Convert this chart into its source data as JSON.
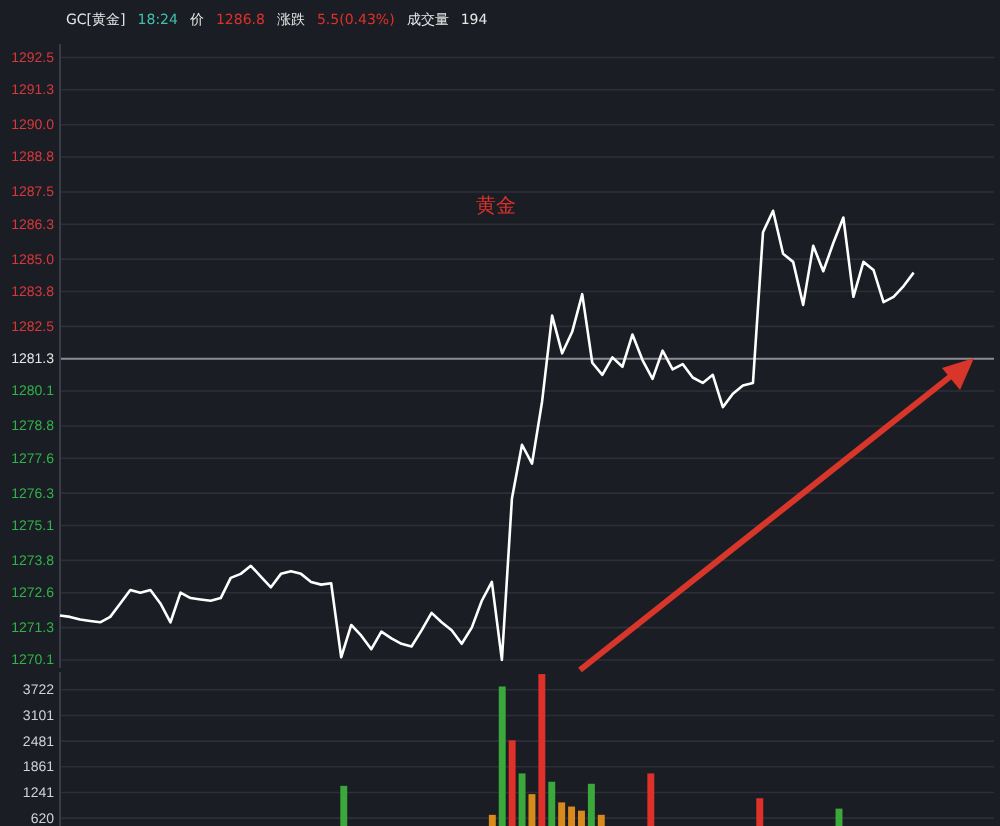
{
  "chart_data": [
    {
      "type": "line",
      "title": "黄金",
      "annotations": [
        "GC[黄金]",
        "18:24",
        "价",
        "1286.8",
        "涨跌",
        "5.5(0.43%)",
        "成交量",
        "194"
      ],
      "categories": [
        null,
        null,
        null,
        null,
        null,
        null,
        null,
        null,
        null,
        null,
        null,
        null,
        null,
        null,
        null,
        null,
        null,
        null,
        null,
        null,
        null,
        null,
        null,
        null,
        null,
        null,
        null,
        null,
        null,
        null,
        null,
        null,
        null,
        null,
        null,
        null,
        null,
        null,
        null,
        null,
        null,
        null,
        null,
        null,
        null,
        null,
        null,
        null,
        null,
        null,
        null,
        null,
        null,
        null,
        null,
        null,
        null,
        null,
        null,
        null,
        null,
        null,
        null,
        null,
        null,
        null,
        null,
        null,
        null,
        null,
        null,
        null,
        null,
        null,
        null,
        null,
        null,
        null,
        null,
        null,
        null,
        null,
        null,
        null,
        null,
        null,
        null,
        null,
        null,
        null,
        null,
        null,
        null,
        null
      ],
      "series": [
        {
          "color": "#ffffff",
          "values": [
            1271.75,
            1271.7,
            1271.6,
            1271.55,
            1271.5,
            1271.7,
            1272.2,
            1272.7,
            1272.6,
            1272.7,
            1272.2,
            1271.5,
            1272.6,
            1272.4,
            1272.35,
            1272.3,
            1272.4,
            1273.15,
            1273.3,
            1273.6,
            1273.2,
            1272.8,
            1273.3,
            1273.4,
            1273.3,
            1273.0,
            1272.9,
            1272.95,
            1270.2,
            1271.4,
            1271.0,
            1270.5,
            1271.15,
            1270.9,
            1270.7,
            1270.6,
            1271.2,
            1271.85,
            1271.5,
            1271.2,
            1270.7,
            1271.3,
            1272.3,
            1273.0,
            1270.1,
            1276.1,
            1278.1,
            1277.4,
            1279.7,
            1282.9,
            1281.5,
            1282.3,
            1283.7,
            1281.15,
            1280.7,
            1281.35,
            1281.0,
            1282.2,
            1281.25,
            1280.55,
            1281.6,
            1280.9,
            1281.1,
            1280.6,
            1280.4,
            1280.7,
            1279.5,
            1280.0,
            1280.3,
            1280.4,
            1286.0,
            1286.8,
            1285.2,
            1284.9,
            1283.3,
            1285.5,
            1284.55,
            1285.6,
            1286.55,
            1283.6,
            1284.9,
            1284.6,
            1283.4,
            1283.6,
            1284.0,
            1284.5,
            null,
            null,
            null,
            null,
            null,
            null,
            null,
            null
          ]
        }
      ],
      "ylim": [
        1269.8,
        1293.0
      ],
      "yticks": [
        {
          "value": 1270.1,
          "label": "1270.1"
        },
        {
          "value": 1271.3,
          "label": "1271.3"
        },
        {
          "value": 1272.6,
          "label": "1272.6"
        },
        {
          "value": 1273.8,
          "label": "1273.8"
        },
        {
          "value": 1275.1,
          "label": "1275.1"
        },
        {
          "value": 1276.3,
          "label": "1276.3"
        },
        {
          "value": 1277.6,
          "label": "1277.6"
        },
        {
          "value": 1278.8,
          "label": "1278.8"
        },
        {
          "value": 1280.1,
          "label": "1280.1"
        },
        {
          "value": 1281.3,
          "label": "1281.3"
        },
        {
          "value": 1282.5,
          "label": "1282.5"
        },
        {
          "value": 1283.8,
          "label": "1283.8"
        },
        {
          "value": 1285,
          "label": "1285.0"
        },
        {
          "value": 1286.3,
          "label": "1286.3"
        },
        {
          "value": 1287.5,
          "label": "1287.5"
        },
        {
          "value": 1288.8,
          "label": "1288.8"
        },
        {
          "value": 1290,
          "label": "1290.0"
        },
        {
          "value": 1291.3,
          "label": "1291.3"
        },
        {
          "value": 1292.5,
          "label": "1292.5"
        }
      ],
      "ref_lines": [
        {
          "axis": "y",
          "value": 1281.3,
          "color": "#8a8d94"
        }
      ],
      "grid": "y",
      "tick_labels": "y",
      "marker": "none",
      "line_style": "solid"
    },
    {
      "type": "bar",
      "categories": [
        null,
        null,
        null,
        null,
        null,
        null,
        null,
        null,
        null,
        null,
        null,
        null,
        null,
        null,
        null,
        null,
        null,
        null,
        null,
        null,
        null,
        null,
        null,
        null,
        null,
        null,
        null,
        null,
        null,
        null,
        null,
        null,
        null,
        null,
        null,
        null,
        null,
        null,
        null,
        null,
        null,
        null,
        null,
        null,
        null,
        null,
        null,
        null,
        null,
        null,
        null,
        null,
        null,
        null,
        null,
        null,
        null,
        null,
        null,
        null,
        null,
        null,
        null,
        null,
        null,
        null,
        null,
        null,
        null,
        null,
        null,
        null,
        null,
        null,
        null,
        null,
        null,
        null,
        null,
        null,
        null,
        null,
        null,
        null,
        null,
        null,
        null,
        null,
        null,
        null,
        null,
        null,
        null,
        null
      ],
      "values": [
        null,
        null,
        null,
        null,
        null,
        null,
        null,
        null,
        null,
        null,
        null,
        null,
        null,
        null,
        null,
        null,
        null,
        null,
        null,
        null,
        null,
        null,
        null,
        null,
        null,
        null,
        null,
        null,
        1400,
        null,
        null,
        null,
        null,
        null,
        null,
        null,
        null,
        null,
        null,
        null,
        null,
        null,
        null,
        700,
        3800,
        2500,
        1700,
        1200,
        4100,
        1500,
        1000,
        900,
        800,
        1450,
        700,
        null,
        null,
        null,
        null,
        1700,
        null,
        null,
        null,
        null,
        null,
        null,
        null,
        null,
        null,
        null,
        1100,
        null,
        null,
        null,
        null,
        null,
        null,
        null,
        850,
        null,
        null,
        null,
        null,
        null,
        null,
        null,
        null,
        null,
        null,
        null,
        null,
        null,
        null,
        null
      ],
      "colors": [
        null,
        null,
        null,
        null,
        null,
        null,
        null,
        null,
        null,
        null,
        null,
        null,
        null,
        null,
        null,
        null,
        null,
        null,
        null,
        null,
        null,
        null,
        null,
        null,
        null,
        null,
        null,
        null,
        "#3aa83a",
        null,
        null,
        null,
        null,
        null,
        null,
        null,
        null,
        null,
        null,
        null,
        null,
        null,
        null,
        "#d98a1a",
        "#3aa83a",
        "#e0302a",
        "#3aa83a",
        "#d98a1a",
        "#e0302a",
        "#3aa83a",
        "#d98a1a",
        "#d98a1a",
        "#d98a1a",
        "#3aa83a",
        "#d98a1a",
        null,
        null,
        null,
        null,
        "#e0302a",
        null,
        null,
        null,
        null,
        null,
        null,
        null,
        null,
        null,
        null,
        "#e0302a",
        null,
        null,
        null,
        null,
        null,
        null,
        null,
        "#3aa83a",
        null,
        null,
        null,
        null,
        null,
        null,
        null,
        null,
        null,
        null,
        null,
        null,
        null,
        null,
        null
      ],
      "ylim": [
        430,
        4150
      ],
      "yticks": [
        620,
        1241,
        1861,
        2481,
        3101,
        3722
      ],
      "grid": "y",
      "tick_labels": "y"
    }
  ]
}
